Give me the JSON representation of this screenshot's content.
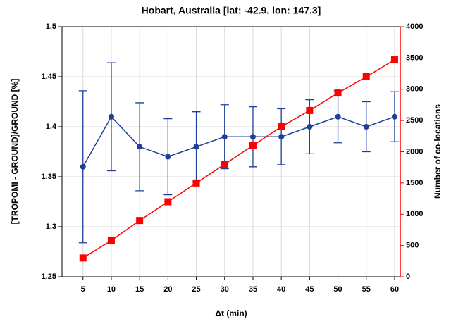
{
  "chart_data": {
    "type": "line",
    "title": "Hobart, Australia [lat: -42.9, lon: 147.3]",
    "xlabel": "Δt (min)",
    "ylabel": "[TROPOMI - GROUND]/GROUND [%]",
    "y2label": "Number of co-locations",
    "x": [
      5,
      10,
      15,
      20,
      25,
      30,
      35,
      40,
      45,
      50,
      55,
      60
    ],
    "series": [
      {
        "color": "#1f3f99",
        "values": [
          1.36,
          1.41,
          1.38,
          1.37,
          1.38,
          1.39,
          1.39,
          1.39,
          1.4,
          1.41,
          1.4,
          1.41
        ],
        "errors": [
          0.076,
          0.054,
          0.044,
          0.038,
          0.035,
          0.032,
          0.03,
          0.028,
          0.027,
          0.026,
          0.025,
          0.025
        ]
      },
      {
        "color": "#ff0000",
        "axis": "y2",
        "values": [
          300,
          580,
          900,
          1200,
          1500,
          1800,
          2100,
          2400,
          2660,
          2940,
          3200,
          3470
        ]
      }
    ],
    "xlim": [
      1.3,
      61
    ],
    "xticks": [
      5,
      10,
      15,
      20,
      25,
      30,
      35,
      40,
      45,
      50,
      55,
      60
    ],
    "ylim": [
      1.25,
      1.5
    ],
    "yticks": [
      1.25,
      1.3,
      1.35,
      1.4,
      1.45,
      1.5
    ],
    "y2lim": [
      0,
      4000
    ],
    "y2ticks": [
      0,
      500,
      1000,
      1500,
      2000,
      2500,
      3000,
      3500,
      4000
    ],
    "y2color": "#ff0000",
    "grid": true
  }
}
